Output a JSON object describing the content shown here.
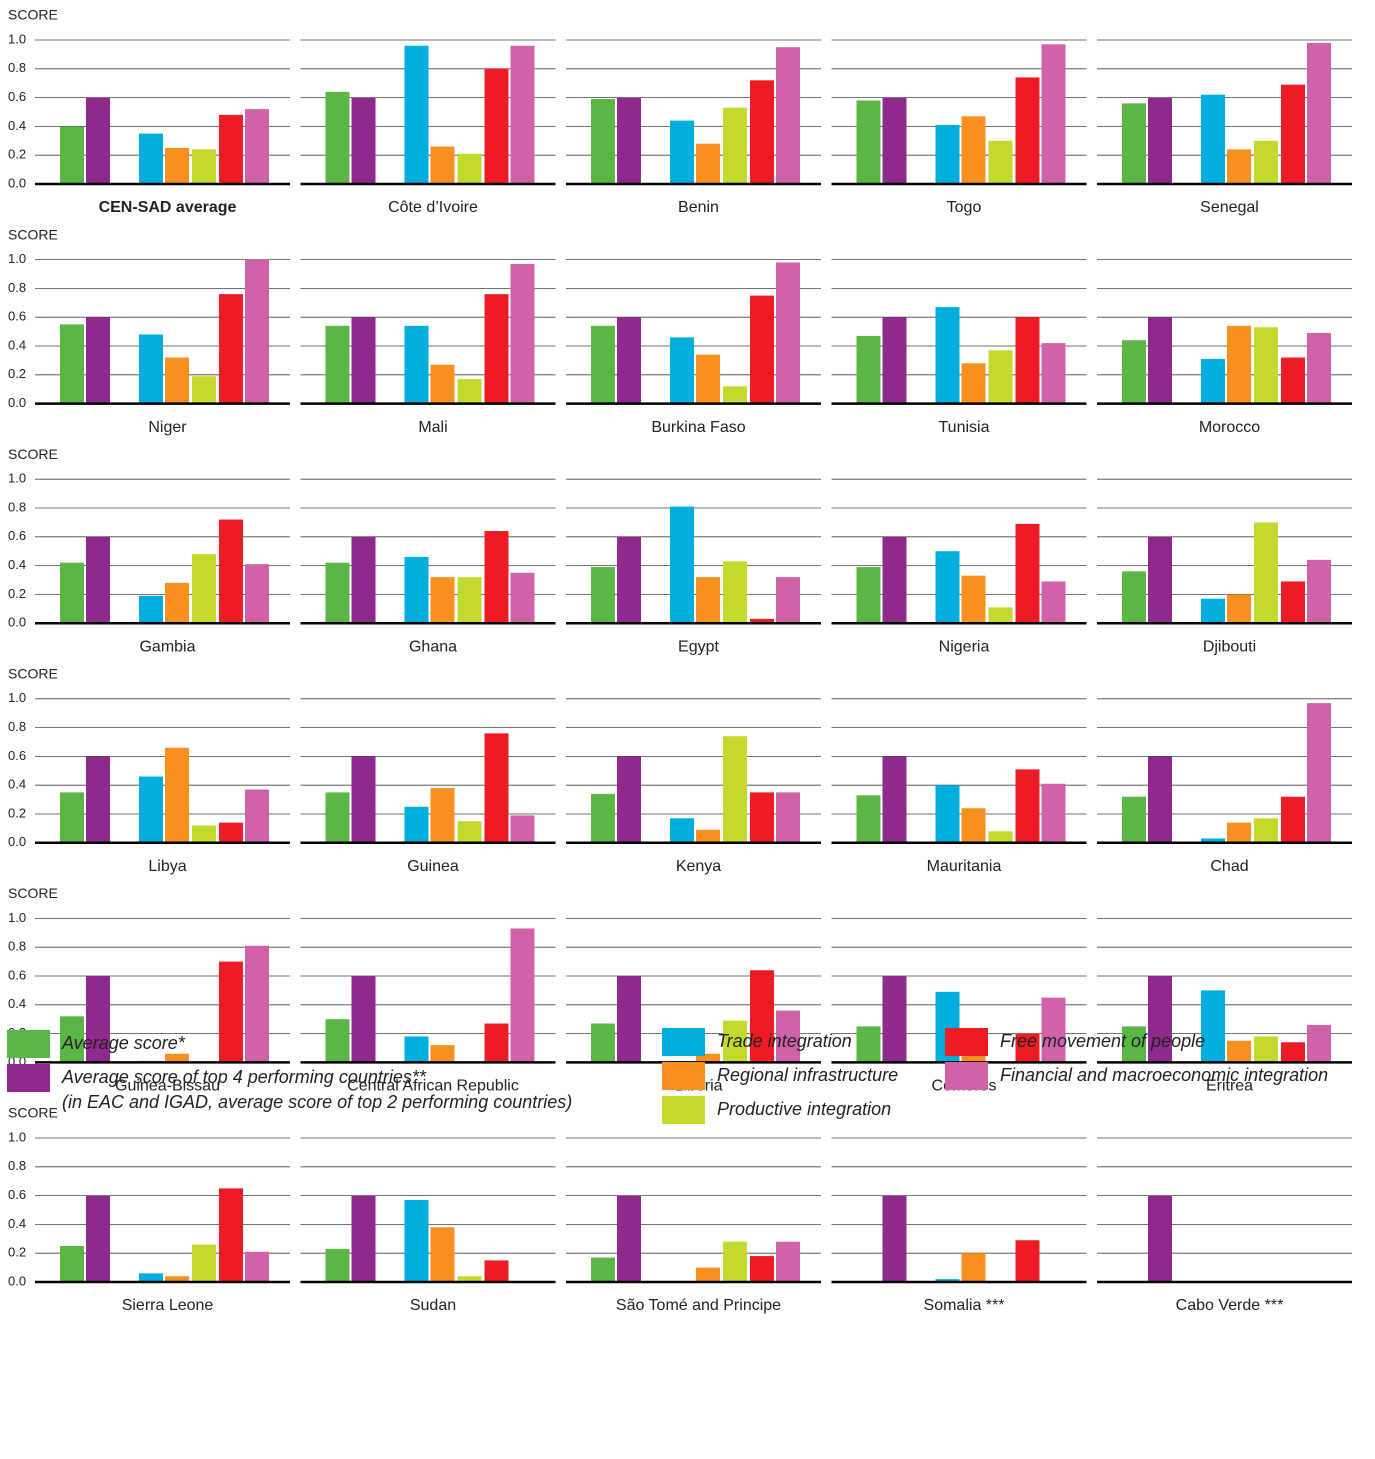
{
  "chart_data": {
    "type": "bar",
    "ylabel": "SCORE",
    "ylim": [
      0,
      1
    ],
    "yticks": [
      {
        "value": 0,
        "label": "0.0"
      },
      {
        "value": 0.2,
        "label": "0.2"
      },
      {
        "value": 0.4,
        "label": "0.4"
      },
      {
        "value": 0.6,
        "label": "0.6"
      },
      {
        "value": 0.8,
        "label": "0.8"
      },
      {
        "value": 1,
        "label": "1.0"
      }
    ],
    "series": [
      {
        "name": "Average score*",
        "color": "#5cb646"
      },
      {
        "name": "Average score of top 4 performing countries**",
        "color": "#8e2a8b"
      },
      {
        "name": "Trade integration",
        "color": "#00aede"
      },
      {
        "name": "Regional infrastructure",
        "color": "#f7901e"
      },
      {
        "name": "Productive integration",
        "color": "#c5d92d"
      },
      {
        "name": "Free movement of people",
        "color": "#ed1c24"
      },
      {
        "name": "Financial and macroeconomic integration",
        "color": "#d062a8"
      }
    ],
    "legend_note": "(in EAC and IGAD, average score of top 2 performing countries)",
    "panels": [
      {
        "title": "CEN-SAD average",
        "values": [
          0.4,
          0.6,
          0.35,
          0.25,
          0.24,
          0.48,
          0.52
        ]
      },
      {
        "title": "Côte d’Ivoire",
        "values": [
          0.64,
          0.6,
          0.96,
          0.26,
          0.21,
          0.8,
          0.96
        ]
      },
      {
        "title": "Benin",
        "values": [
          0.59,
          0.6,
          0.44,
          0.28,
          0.53,
          0.72,
          0.95
        ]
      },
      {
        "title": "Togo",
        "values": [
          0.58,
          0.6,
          0.41,
          0.47,
          0.3,
          0.74,
          0.97
        ]
      },
      {
        "title": "Senegal",
        "values": [
          0.56,
          0.6,
          0.62,
          0.24,
          0.3,
          0.69,
          0.98
        ]
      },
      {
        "title": "Niger",
        "values": [
          0.55,
          0.6,
          0.48,
          0.32,
          0.19,
          0.76,
          1.0
        ]
      },
      {
        "title": "Mali",
        "values": [
          0.54,
          0.6,
          0.54,
          0.27,
          0.17,
          0.76,
          0.97
        ]
      },
      {
        "title": "Burkina Faso",
        "values": [
          0.54,
          0.6,
          0.46,
          0.34,
          0.12,
          0.75,
          0.98
        ]
      },
      {
        "title": "Tunisia",
        "values": [
          0.47,
          0.6,
          0.67,
          0.28,
          0.37,
          0.6,
          0.42
        ]
      },
      {
        "title": "Morocco",
        "values": [
          0.44,
          0.6,
          0.31,
          0.54,
          0.53,
          0.32,
          0.49
        ]
      },
      {
        "title": "Gambia",
        "values": [
          0.42,
          0.6,
          0.19,
          0.28,
          0.48,
          0.72,
          0.41
        ]
      },
      {
        "title": "Ghana",
        "values": [
          0.42,
          0.6,
          0.46,
          0.32,
          0.32,
          0.64,
          0.35
        ]
      },
      {
        "title": "Egypt",
        "values": [
          0.39,
          0.6,
          0.81,
          0.32,
          0.43,
          0.03,
          0.32
        ]
      },
      {
        "title": "Nigeria",
        "values": [
          0.39,
          0.6,
          0.5,
          0.33,
          0.11,
          0.69,
          0.29
        ]
      },
      {
        "title": "Djibouti",
        "values": [
          0.36,
          0.6,
          0.17,
          0.2,
          0.7,
          0.29,
          0.44
        ]
      },
      {
        "title": "Libya",
        "values": [
          0.35,
          0.6,
          0.46,
          0.66,
          0.12,
          0.14,
          0.37
        ]
      },
      {
        "title": "Guinea",
        "values": [
          0.35,
          0.6,
          0.25,
          0.38,
          0.15,
          0.76,
          0.19
        ]
      },
      {
        "title": "Kenya",
        "values": [
          0.34,
          0.6,
          0.17,
          0.09,
          0.74,
          0.35,
          0.35
        ]
      },
      {
        "title": "Mauritania",
        "values": [
          0.33,
          0.6,
          0.4,
          0.24,
          0.08,
          0.51,
          0.41
        ]
      },
      {
        "title": "Chad",
        "values": [
          0.32,
          0.6,
          0.03,
          0.14,
          0.17,
          0.32,
          0.97
        ]
      },
      {
        "title": "Guinea-Bissau",
        "values": [
          0.32,
          0.6,
          0.01,
          0.06,
          0.01,
          0.7,
          0.81
        ]
      },
      {
        "title": "Central African Republic",
        "values": [
          0.3,
          0.6,
          0.18,
          0.12,
          0,
          0.27,
          0.93
        ]
      },
      {
        "title": "Liberia",
        "values": [
          0.27,
          0.6,
          0.01,
          0.06,
          0.29,
          0.64,
          0.36
        ]
      },
      {
        "title": "Comoros",
        "values": [
          0.25,
          0.6,
          0.49,
          0.12,
          0,
          0.2,
          0.45
        ]
      },
      {
        "title": "Eritrea",
        "values": [
          0.25,
          0.6,
          0.5,
          0.15,
          0.18,
          0.14,
          0.26
        ]
      },
      {
        "title": "Sierra Leone",
        "values": [
          0.25,
          0.6,
          0.06,
          0.04,
          0.26,
          0.65,
          0.21
        ]
      },
      {
        "title": "Sudan",
        "values": [
          0.23,
          0.6,
          0.57,
          0.38,
          0.04,
          0.15,
          0
        ]
      },
      {
        "title": "São Tomé and Principe",
        "values": [
          0.17,
          0.6,
          0,
          0.1,
          0.28,
          0.18,
          0.28
        ]
      },
      {
        "title": "Somalia ***",
        "values": [
          0,
          0.6,
          0.02,
          0.2,
          0,
          0.29,
          0
        ]
      },
      {
        "title": "Cabo Verde ***",
        "values": [
          0,
          0.6,
          0,
          0,
          0,
          0,
          0
        ]
      }
    ]
  }
}
